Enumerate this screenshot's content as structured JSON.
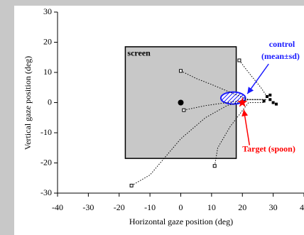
{
  "chart_data": {
    "type": "line",
    "xlabel": "Horizontal gaze position (deg)",
    "ylabel": "Vertical gaze position (deg)",
    "xlim": [
      -40,
      40
    ],
    "ylim": [
      -30,
      30
    ],
    "xticks": [
      -40,
      -30,
      -20,
      -10,
      0,
      10,
      20,
      30,
      40
    ],
    "yticks": [
      -30,
      -20,
      -10,
      0,
      10,
      20,
      30
    ],
    "color": "#000000",
    "screen": {
      "label": "screen",
      "xlim": [
        -18,
        18
      ],
      "ylim": [
        -18.5,
        18.5
      ],
      "color": "#c8c8c8"
    },
    "series": [
      {
        "x": [
          0,
          5,
          10,
          17,
          22,
          28
        ],
        "y": [
          10.5,
          8,
          6,
          3,
          1,
          1
        ]
      },
      {
        "x": [
          1,
          8,
          15,
          22,
          28
        ],
        "y": [
          -2.5,
          -1,
          0,
          1,
          1
        ]
      },
      {
        "x": [
          -16,
          -10,
          -5,
          0,
          8,
          15,
          22,
          27
        ],
        "y": [
          -27.5,
          -24,
          -18,
          -12,
          -5,
          -1,
          1,
          1
        ]
      },
      {
        "x": [
          11,
          12,
          16,
          22,
          27
        ],
        "y": [
          -21,
          -15,
          -8,
          0,
          0
        ]
      },
      {
        "x": [
          19,
          22,
          26,
          28
        ],
        "y": [
          14,
          10,
          5,
          2
        ]
      }
    ],
    "endpoints": {
      "x": [
        28,
        29,
        30,
        31,
        27,
        29
      ],
      "y": [
        2,
        1,
        0,
        -0.5,
        0.5,
        2.5
      ]
    },
    "fixation": {
      "x": 0,
      "y": 0
    },
    "target": {
      "x": 20,
      "y": 0,
      "label": "Target (spoon)",
      "color": "#ff0000"
    },
    "control": {
      "cx": 17,
      "cy": 1.5,
      "rx": 4,
      "ry": 2,
      "label1": "control",
      "label2": "(mean±sd)",
      "color": "#1a1aff"
    }
  }
}
